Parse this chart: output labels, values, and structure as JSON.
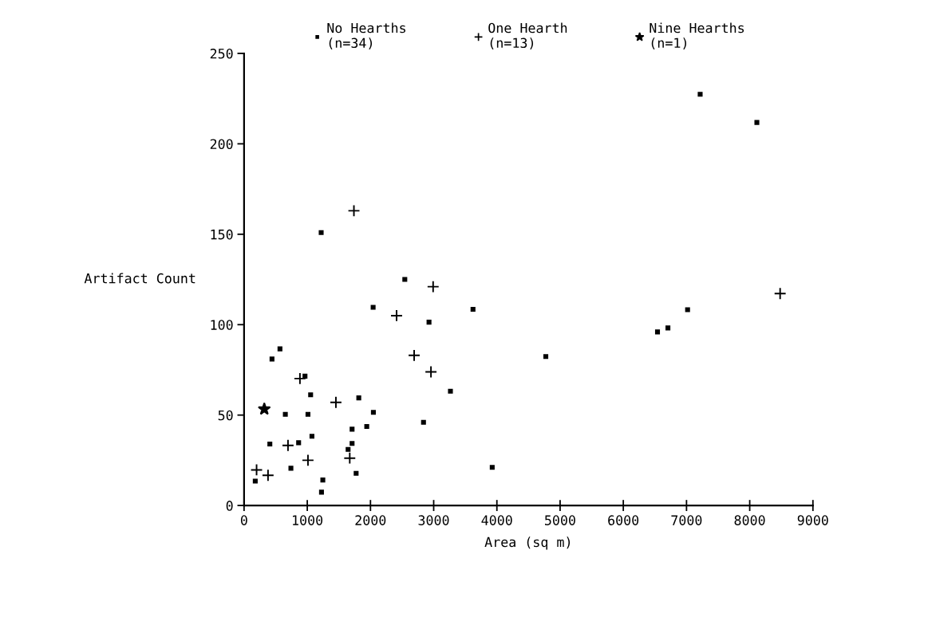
{
  "chart_data": {
    "type": "scatter",
    "xlabel": "Area (sq m)",
    "ylabel": "Artifact Count",
    "xlim": [
      0,
      9000
    ],
    "xticks": [
      0,
      1000,
      2000,
      3000,
      4000,
      5000,
      6000,
      7000,
      8000,
      9000
    ],
    "ylim": [
      0,
      250
    ],
    "yticks": [
      0,
      50,
      100,
      150,
      200,
      250
    ],
    "grid": false,
    "legend": "top",
    "series": [
      {
        "name": "No Hearths\n(n=34)",
        "color": "#000000",
        "marker": "square",
        "x": [
          177,
          442,
          568,
          408,
          653,
          741,
          863,
          964,
          1053,
          1011,
          1074,
          1246,
          1225,
          1646,
          1709,
          1709,
          1773,
          1815,
          1941,
          2046,
          2042,
          2543,
          3622,
          2926,
          4774,
          3265,
          2839,
          3926,
          7216,
          8113,
          7017,
          6706,
          6541,
          1220
        ],
        "values": [
          13.5,
          81,
          86.6,
          34,
          50.4,
          20.6,
          34.7,
          71.5,
          61.2,
          50.4,
          38.3,
          14.1,
          7.4,
          31,
          34.3,
          42.2,
          17.8,
          59.5,
          43.7,
          51.5,
          109.6,
          125,
          108.5,
          101.4,
          82.4,
          63.2,
          46,
          21.1,
          227.4,
          211.8,
          108.3,
          98.2,
          96,
          150.9
        ]
      },
      {
        "name": "One Hearth\n(n=13)",
        "color": "#000000",
        "marker": "cross",
        "x": [
          198,
          379,
          695,
          884,
          1011,
          1453,
          1672,
          2413,
          2691,
          2991,
          2957,
          8481,
          1738
        ],
        "values": [
          19.7,
          16.7,
          33.2,
          70.2,
          25,
          57,
          26.2,
          105,
          83,
          121,
          73.9,
          117.2,
          163
        ]
      },
      {
        "name": "Nine Hearths\n(n=1)",
        "color": "#000000",
        "marker": "star",
        "x": [
          320
        ],
        "values": [
          53.3
        ]
      }
    ]
  }
}
